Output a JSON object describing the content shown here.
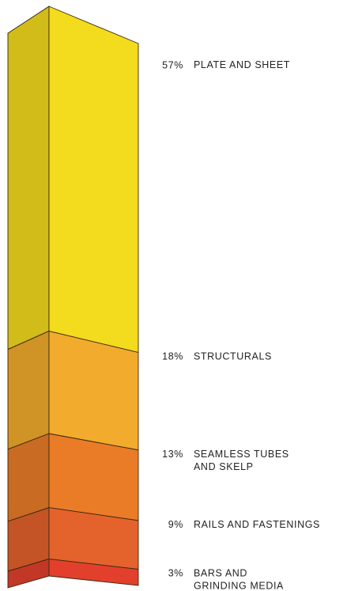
{
  "chart_data": {
    "type": "stacked-column-3d",
    "series": [
      {
        "name": "PLATE AND SHEET",
        "values": [
          57
        ],
        "value_labels": [
          "57%"
        ],
        "color": "#f3db1e"
      },
      {
        "name": "STRUCTURALS",
        "values": [
          18
        ],
        "value_labels": [
          "18%"
        ],
        "color": "#f2ab2c"
      },
      {
        "name": "SEAMLESS TUBES\nAND SKELP",
        "values": [
          13
        ],
        "value_labels": [
          "13%"
        ],
        "color": "#ea7c28"
      },
      {
        "name": "RAILS AND FASTENINGS",
        "values": [
          9
        ],
        "value_labels": [
          "9%"
        ],
        "color": "#e4622c"
      },
      {
        "name": "BARS AND\nGRINDING MEDIA",
        "values": [
          3
        ],
        "value_labels": [
          "3%"
        ],
        "color": "#e2402c"
      }
    ]
  }
}
